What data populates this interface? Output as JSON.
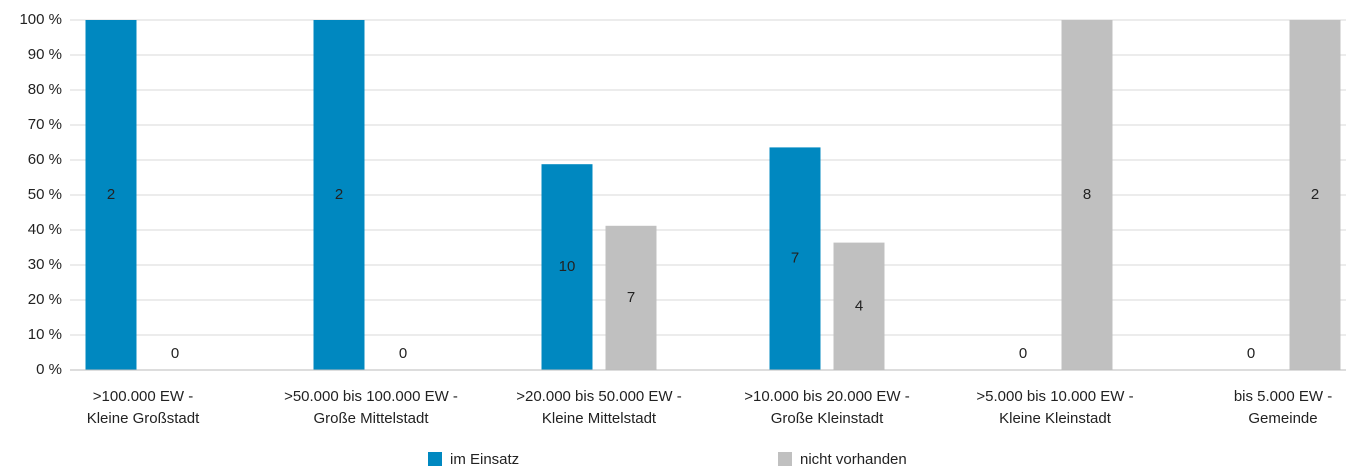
{
  "chart_data": {
    "type": "bar",
    "categories": [
      [
        ">100.000 EW -",
        "Kleine Großstadt"
      ],
      [
        ">50.000 bis 100.000 EW -",
        "Große Mittelstadt"
      ],
      [
        ">20.000 bis 50.000 EW -",
        "Kleine Mittelstadt"
      ],
      [
        ">10.000 bis 20.000 EW -",
        "Große Kleinstadt"
      ],
      [
        ">5.000 bis 10.000 EW -",
        "Kleine Kleinstadt"
      ],
      [
        "bis 5.000 EW -",
        "Gemeinde"
      ]
    ],
    "series": [
      {
        "name": "im Einsatz",
        "color": "#0088c0",
        "values": [
          100,
          100,
          58.8,
          63.6,
          0,
          0
        ],
        "counts": [
          "2",
          "2",
          "10",
          "7",
          "0",
          "0"
        ]
      },
      {
        "name": "nicht vorhanden",
        "color": "#c0c0c0",
        "values": [
          0,
          0,
          41.2,
          36.4,
          100,
          100
        ],
        "counts": [
          "0",
          "0",
          "7",
          "4",
          "8",
          "2"
        ]
      }
    ],
    "ylim": [
      0,
      100
    ],
    "yticks": [
      {
        "value": 0,
        "label": "0 %"
      },
      {
        "value": 10,
        "label": "10 %"
      },
      {
        "value": 20,
        "label": "20 %"
      },
      {
        "value": 30,
        "label": "30 %"
      },
      {
        "value": 40,
        "label": "40 %"
      },
      {
        "value": 50,
        "label": "50 %"
      },
      {
        "value": 60,
        "label": "60 %"
      },
      {
        "value": 70,
        "label": "70 %"
      },
      {
        "value": 80,
        "label": "80 %"
      },
      {
        "value": 90,
        "label": "90 %"
      },
      {
        "value": 100,
        "label": "100 %"
      }
    ],
    "grid": true,
    "legend": "bottom"
  }
}
